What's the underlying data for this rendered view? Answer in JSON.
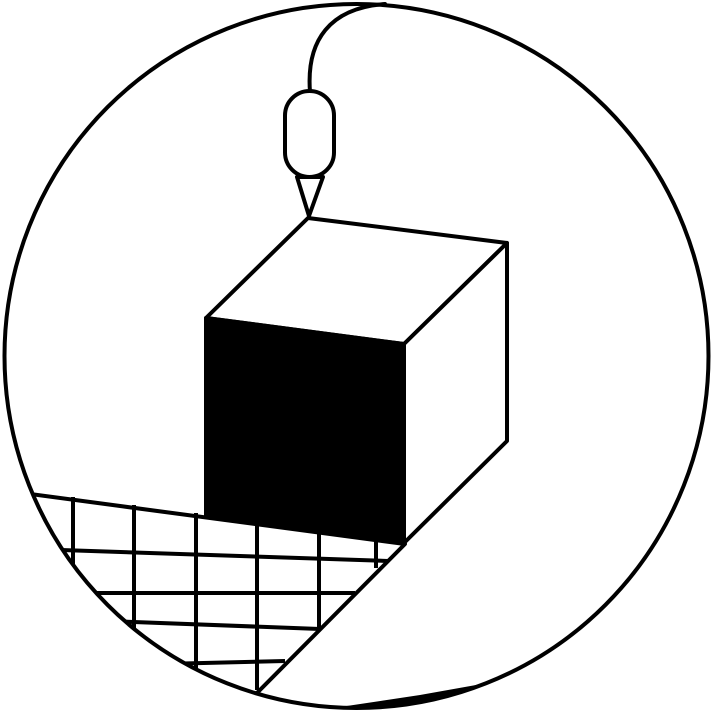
{
  "illustration": {
    "subject": "3d-printer-nozzle-printing-cube",
    "colors": {
      "ink": "#000000",
      "paper": "#ffffff"
    },
    "icons": [
      "print-head-icon",
      "nozzle-tip-icon",
      "filament-cable-icon",
      "cube-icon",
      "grid-build-plate-icon"
    ]
  }
}
